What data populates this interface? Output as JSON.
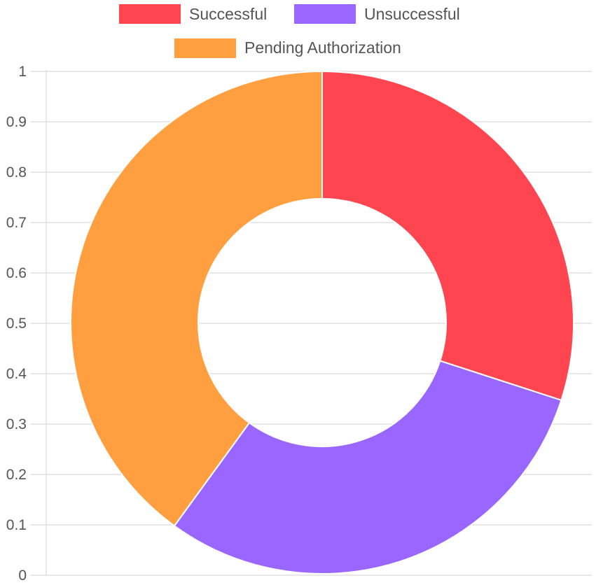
{
  "chart_data": {
    "type": "doughnut",
    "labels": [
      "Successful",
      "Unsuccessful",
      "Pending Authorization"
    ],
    "values": [
      0.3,
      0.3,
      0.4
    ],
    "colors": [
      "#ff4650",
      "#9966ff",
      "#ff9f40"
    ],
    "y_axis": {
      "ticks": [
        "0",
        "0.1",
        "0.2",
        "0.3",
        "0.4",
        "0.5",
        "0.6",
        "0.7",
        "0.8",
        "0.9",
        "1"
      ],
      "range": [
        0,
        1
      ]
    },
    "grid": true,
    "legend_position": "top"
  }
}
